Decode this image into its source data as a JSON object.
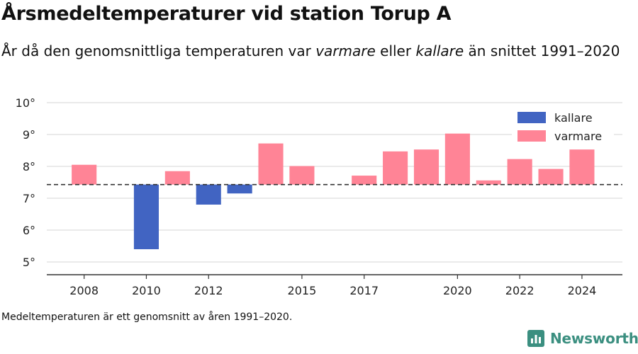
{
  "header": {
    "title": "Årsmedeltemperaturer vid station Torup A",
    "subtitle_before": "År då den genomsnittliga temperaturen var ",
    "subtitle_warmer": "varmare",
    "subtitle_middle": " eller ",
    "subtitle_colder": "kallare",
    "subtitle_after": " än snittet 1991–2020"
  },
  "footer": {
    "note": "Medeltemperaturen är ett genomsnitt av åren 1991–2020.",
    "brand": "Newsworthy"
  },
  "colors": {
    "warmer": "#ff8496",
    "colder": "#4164c2",
    "grid": "#dddddd",
    "axis": "#333333",
    "brand": "#3b8f80"
  },
  "chart_data": {
    "type": "bar",
    "baseline": 7.43,
    "ylim": [
      4.6,
      10.2
    ],
    "yticks": [
      5,
      6,
      7,
      8,
      9,
      10
    ],
    "ytick_suffix": "°",
    "xlim": [
      2006.8,
      2025.3
    ],
    "xticks": [
      2008,
      2010,
      2012,
      2015,
      2017,
      2020,
      2022,
      2024
    ],
    "legend": {
      "position": "top-right",
      "items": [
        {
          "label": "kallare",
          "color": "#4164c2"
        },
        {
          "label": "varmare",
          "color": "#ff8496"
        }
      ]
    },
    "series": [
      {
        "name": "varmare",
        "points": [
          {
            "year": 2008,
            "value": 8.05
          },
          {
            "year": 2011,
            "value": 7.85
          },
          {
            "year": 2014,
            "value": 8.72
          },
          {
            "year": 2015,
            "value": 8.01
          },
          {
            "year": 2017,
            "value": 7.71
          },
          {
            "year": 2018,
            "value": 8.47
          },
          {
            "year": 2019,
            "value": 8.53
          },
          {
            "year": 2020,
            "value": 9.03
          },
          {
            "year": 2021,
            "value": 7.56
          },
          {
            "year": 2022,
            "value": 8.23
          },
          {
            "year": 2023,
            "value": 7.92
          },
          {
            "year": 2024,
            "value": 8.53
          }
        ]
      },
      {
        "name": "kallare",
        "points": [
          {
            "year": 2010,
            "value": 5.4
          },
          {
            "year": 2012,
            "value": 6.8
          },
          {
            "year": 2013,
            "value": 7.15
          }
        ]
      }
    ]
  }
}
